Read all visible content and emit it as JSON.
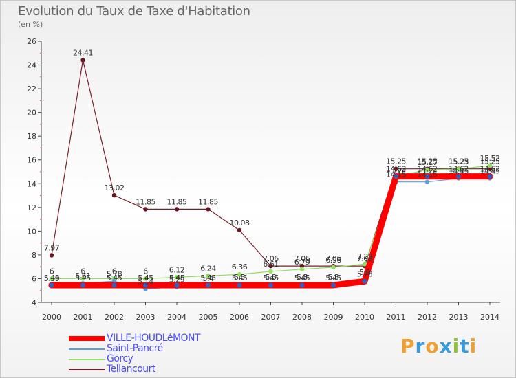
{
  "title": "Evolution du Taux de Taxe d'Habitation",
  "subtitle": "(en %)",
  "logo": [
    "P",
    "r",
    "o",
    "x",
    "i",
    "t",
    "i"
  ],
  "chart_data": {
    "type": "line",
    "x": [
      "2000",
      "2001",
      "2002",
      "2003",
      "2004",
      "2005",
      "2006",
      "2007",
      "2008",
      "2009",
      "2010",
      "2011",
      "2012",
      "2013",
      "2014"
    ],
    "ylim": [
      4,
      26
    ],
    "yticks": [
      4,
      6,
      8,
      10,
      12,
      14,
      16,
      18,
      20,
      22,
      24,
      26
    ],
    "grid": false,
    "legend_position": "bottom-left",
    "series": [
      {
        "name": "VILLE-HOUDLéMONT",
        "color": "#ff0000",
        "marker": "#3060c0",
        "width": 9,
        "values": [
          5.45,
          5.45,
          5.45,
          5.45,
          5.45,
          5.45,
          5.45,
          5.45,
          5.45,
          5.45,
          5.78,
          14.62,
          14.62,
          14.62,
          14.62
        ],
        "labels": [
          "5.45",
          "5.45",
          "5.45",
          "5.45",
          "5.45",
          "5.45",
          "5.45",
          "5.45",
          "5.45",
          "5.45",
          "5.78",
          "14.62",
          "14.62",
          "14.62",
          "14.62"
        ]
      },
      {
        "name": "Saint-Pancré",
        "color": "#5aa0d8",
        "marker": "#5aa0d8",
        "width": 1.2,
        "values": [
          5.39,
          5.61,
          5.78,
          5.14,
          5.29,
          5.4,
          5.5,
          5.5,
          5.5,
          5.5,
          5.9,
          14.15,
          14.15,
          14.45,
          14.45
        ],
        "labels": [
          "5.39",
          "5.61",
          "5.78",
          "5.14",
          "5.29",
          "5.4",
          "5.5",
          "5.5",
          "5.5",
          "5.5",
          "5.9",
          "14.15",
          "14.15",
          "14.45",
          "14.45"
        ]
      },
      {
        "name": "Gorcy",
        "color": "#90e060",
        "marker": "#90e060",
        "width": 1.2,
        "values": [
          6,
          6,
          6,
          6,
          6.12,
          6.24,
          6.36,
          6.61,
          6.79,
          6.96,
          7.23,
          14.63,
          15.17,
          15.23,
          15.52
        ],
        "labels": [
          "6",
          "6",
          "6",
          "6",
          "6.12",
          "6.24",
          "6.36",
          "6.61",
          "6.79",
          "6.96",
          "7.23",
          "14.63",
          "15.17",
          "15.23",
          "15.52"
        ]
      },
      {
        "name": "Tellancourt",
        "color": "#7a1f2a",
        "marker": "#6a1420",
        "width": 1.2,
        "values": [
          7.97,
          24.41,
          13.02,
          11.85,
          11.85,
          11.85,
          10.08,
          7.06,
          7.06,
          7.06,
          7.06,
          15.25,
          15.25,
          15.25,
          15.25
        ],
        "labels": [
          "7.97",
          "24.41",
          "13.02",
          "11.85",
          "11.85",
          "11.85",
          "10.08",
          "7.06",
          "7.06",
          "7.06",
          "7.06",
          "15.25",
          "15.25",
          "15.25",
          "15.25"
        ]
      }
    ]
  },
  "legend": [
    {
      "label": "VILLE-HOUDLéMONT",
      "color": "#ff0000"
    },
    {
      "label": "Saint-Pancré",
      "color": "#5aa0d8"
    },
    {
      "label": "Gorcy",
      "color": "#90e060"
    },
    {
      "label": "Tellancourt",
      "color": "#7a1f2a"
    }
  ]
}
